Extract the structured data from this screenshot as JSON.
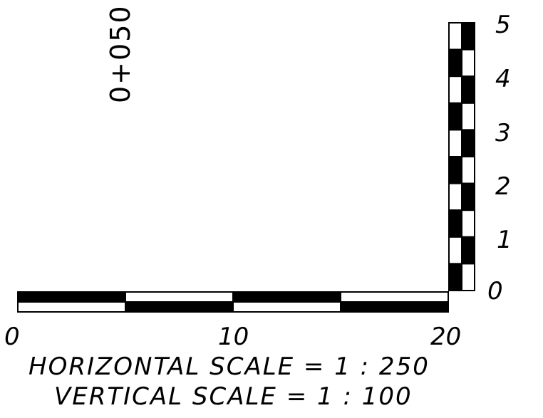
{
  "station_label": "0+050",
  "horizontal_bar": {
    "ticks": [
      "0",
      "10",
      "20"
    ],
    "range": [
      0,
      20
    ],
    "segment_size": 5
  },
  "vertical_bar": {
    "ticks": [
      "0",
      "1",
      "2",
      "3",
      "4",
      "5"
    ],
    "range": [
      0,
      5
    ],
    "segment_size": 0.5
  },
  "scale_lines": {
    "horizontal": "HORIZONTAL SCALE = 1 : 250",
    "vertical": "VERTICAL SCALE = 1 : 100"
  },
  "colors": {
    "ink": "#000000",
    "paper": "#ffffff"
  }
}
